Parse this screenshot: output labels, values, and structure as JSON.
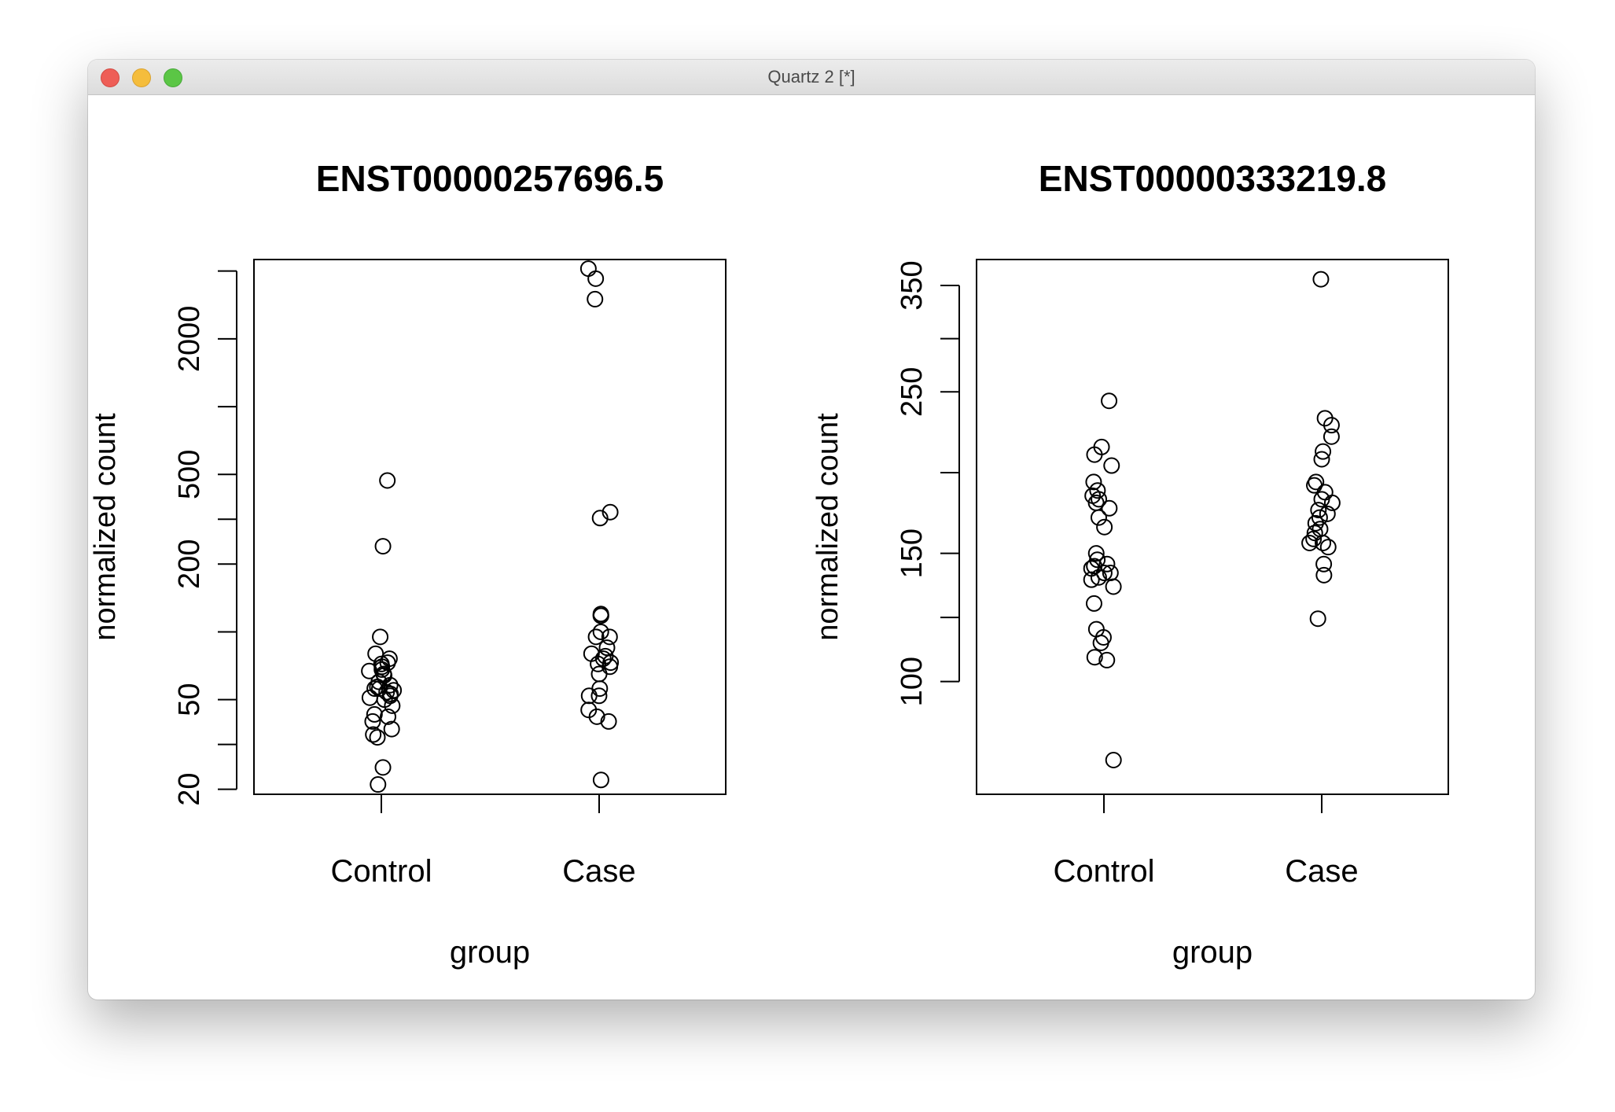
{
  "window": {
    "title": "Quartz 2 [*]"
  },
  "chart_data": [
    {
      "type": "scatter",
      "title": "ENST00000257696.5",
      "xlabel": "group",
      "ylabel": "normalized count",
      "yscale": "log",
      "categories": [
        "Control",
        "Case"
      ],
      "yticks": [
        20,
        50,
        200,
        500,
        2000
      ],
      "ylim": [
        19,
        4500
      ],
      "series": [
        {
          "name": "Control",
          "values": [
            470,
            240,
            95,
            80,
            76,
            73,
            72,
            70,
            68,
            67,
            65,
            64,
            60,
            58,
            57,
            56,
            56,
            55,
            54,
            53,
            52,
            51,
            50,
            47,
            43,
            42,
            40,
            37,
            35,
            34,
            25,
            21
          ]
        },
        {
          "name": "Case",
          "values": [
            4100,
            3700,
            3000,
            340,
            320,
            120,
            118,
            118,
            100,
            95,
            95,
            85,
            80,
            78,
            76,
            73,
            72,
            70,
            65,
            56,
            52,
            52,
            45,
            42,
            40,
            22
          ]
        }
      ]
    },
    {
      "type": "scatter",
      "title": "ENST00000333219.8",
      "xlabel": "group",
      "ylabel": "normalized count",
      "yscale": "log",
      "categories": [
        "Control",
        "Case"
      ],
      "yticks": [
        100,
        150,
        250,
        350
      ],
      "ylim": [
        70,
        380
      ],
      "series": [
        {
          "name": "Control",
          "values": [
            243,
            210,
            205,
            198,
            188,
            183,
            180,
            178,
            176,
            173,
            168,
            163,
            150,
            147,
            145,
            144,
            143,
            141,
            141,
            139,
            138,
            135,
            128,
            118,
            115,
            113,
            108,
            107,
            78
          ]
        },
        {
          "name": "Case",
          "values": [
            357,
            230,
            225,
            217,
            207,
            202,
            188,
            186,
            182,
            178,
            176,
            172,
            170,
            168,
            165,
            162,
            160,
            157,
            155,
            155,
            153,
            145,
            140,
            122
          ]
        }
      ]
    }
  ]
}
